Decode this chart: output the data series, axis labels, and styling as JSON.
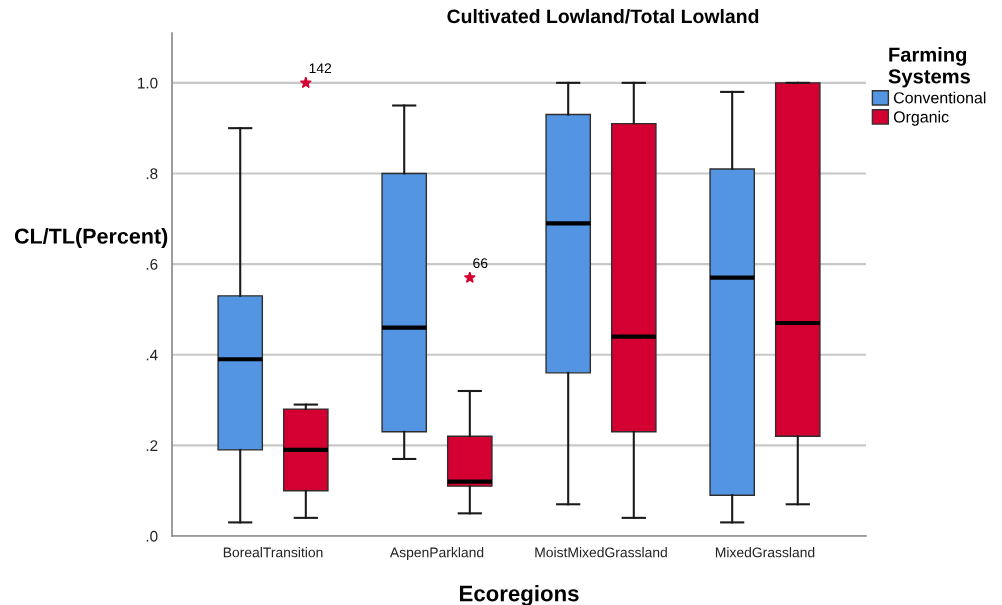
{
  "chart_data": {
    "type": "box",
    "title": "Cultivated Lowland/Total Lowland",
    "xlabel": "Ecoregions",
    "ylabel": "CL/TL(Percent)",
    "legend_title": "Farming Systems",
    "categories": [
      "BorealTransition",
      "AspenParkland",
      "MoistMixedGrassland",
      "MixedGrassland"
    ],
    "series": [
      {
        "name": "Conventional",
        "color": "#5394e3",
        "boxes": [
          {
            "low": 0.03,
            "q1": 0.19,
            "median": 0.39,
            "q3": 0.53,
            "high": 0.9
          },
          {
            "low": 0.17,
            "q1": 0.23,
            "median": 0.46,
            "q3": 0.8,
            "high": 0.95
          },
          {
            "low": 0.07,
            "q1": 0.36,
            "median": 0.69,
            "q3": 0.93,
            "high": 1.0
          },
          {
            "low": 0.03,
            "q1": 0.09,
            "median": 0.57,
            "q3": 0.81,
            "high": 0.98
          }
        ]
      },
      {
        "name": "Organic",
        "color": "#d50032",
        "boxes": [
          {
            "low": 0.04,
            "q1": 0.1,
            "median": 0.19,
            "q3": 0.28,
            "high": 0.29,
            "outliers": [
              1.0
            ]
          },
          {
            "low": 0.05,
            "q1": 0.11,
            "median": 0.12,
            "q3": 0.22,
            "high": 0.32,
            "outliers": [
              0.57
            ]
          },
          {
            "low": 0.04,
            "q1": 0.23,
            "median": 0.44,
            "q3": 0.91,
            "high": 1.0
          },
          {
            "low": 0.07,
            "q1": 0.22,
            "median": 0.47,
            "q3": 1.0,
            "high": 1.0
          }
        ]
      }
    ],
    "ylim": [
      0,
      1.11
    ],
    "yticks": [
      {
        "value": 0,
        "label": ".0"
      },
      {
        "value": 0.2,
        "label": ".2"
      },
      {
        "value": 0.4,
        "label": ".4"
      },
      {
        "value": 0.6,
        "label": ".6"
      },
      {
        "value": 0.8,
        "label": ".8"
      },
      {
        "value": 1.0,
        "label": "1.0"
      }
    ],
    "grid": "y",
    "legend": "right",
    "marker": "star",
    "annotations": [
      "142",
      "66"
    ]
  }
}
